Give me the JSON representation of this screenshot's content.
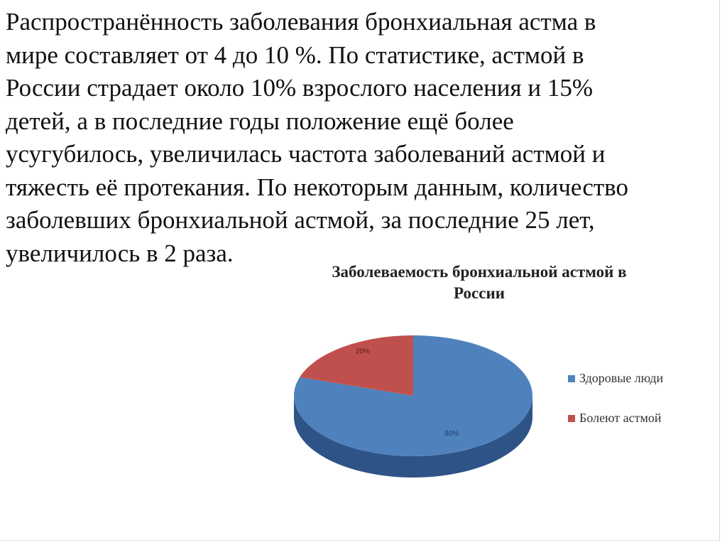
{
  "text": {
    "lines": [
      "Распространённость заболевания бронхиальная астма в",
      "мире составляет от 4 до 10 %. По статистике, астмой в",
      "России страдает около 10% взрослого населения и 15%",
      "детей, а в последние годы положение ещё более",
      "усугубилось, увеличилась частота заболеваний астмой и",
      "тяжесть её протекания. По некоторым данным, количество",
      "заболевших бронхиальной астмой, за последние 25 лет,",
      "увеличилось в 2 раза."
    ]
  },
  "chart_data": {
    "type": "pie",
    "style": "3d",
    "title": "Заболеваемость бронхиальной астмой в России",
    "categories": [
      "Здоровые люди",
      "Болеют астмой"
    ],
    "values": [
      80,
      20
    ],
    "data_labels": [
      "80%",
      "20%"
    ],
    "colors": [
      "#4f81bd",
      "#c0504d"
    ],
    "legend_position": "right"
  }
}
